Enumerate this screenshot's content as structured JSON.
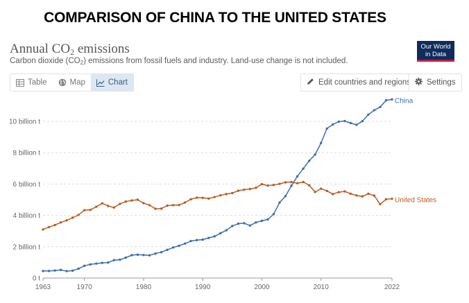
{
  "banner": "COMPARISON OF CHINA TO THE UNITED STATES",
  "header": {
    "title_main": "Annual CO",
    "title_sub": "2",
    "title_end": " emissions",
    "subtitle_a": "Carbon dioxide (CO",
    "subtitle_sub": "2",
    "subtitle_b": ") emissions from fossil fuels and industry. Land-use change is not included.",
    "logo_line1": "Our World",
    "logo_line2": "in Data",
    "logo_color": "#0f2c5c",
    "logo_accent": "#c41e3a"
  },
  "tabs": [
    {
      "label": "Table",
      "icon": "table-icon",
      "active": false
    },
    {
      "label": "Map",
      "icon": "globe-icon",
      "active": false
    },
    {
      "label": "Chart",
      "icon": "line-chart-icon",
      "active": true
    }
  ],
  "controls": {
    "edit_label": "Edit countries and regions",
    "settings_label": "Settings"
  },
  "chart_data": {
    "type": "line",
    "title": "",
    "xlabel": "",
    "ylabel": "",
    "xlim": [
      1963,
      2022
    ],
    "ylim": [
      0,
      11.5
    ],
    "x_ticks": [
      {
        "value": 1963,
        "label": "1963"
      },
      {
        "value": 1970,
        "label": "1970"
      },
      {
        "value": 1980,
        "label": "1980"
      },
      {
        "value": 1990,
        "label": "1990"
      },
      {
        "value": 2000,
        "label": "2000"
      },
      {
        "value": 2010,
        "label": "2010"
      },
      {
        "value": 2022,
        "label": "2022"
      }
    ],
    "y_ticks": [
      {
        "value": 0,
        "label": "0 t"
      },
      {
        "value": 2,
        "label": "2 billion t"
      },
      {
        "value": 4,
        "label": "4 billion t"
      },
      {
        "value": 6,
        "label": "6 billion t"
      },
      {
        "value": 8,
        "label": "8 billion t"
      },
      {
        "value": 10,
        "label": "10 billion t"
      }
    ],
    "grid": "horizontal dashed",
    "legend": "inline labels at line ends",
    "x": [
      1963,
      1964,
      1965,
      1966,
      1967,
      1968,
      1969,
      1970,
      1971,
      1972,
      1973,
      1974,
      1975,
      1976,
      1977,
      1978,
      1979,
      1980,
      1981,
      1982,
      1983,
      1984,
      1985,
      1986,
      1987,
      1988,
      1989,
      1990,
      1991,
      1992,
      1993,
      1994,
      1995,
      1996,
      1997,
      1998,
      1999,
      2000,
      2001,
      2002,
      2003,
      2004,
      2005,
      2006,
      2007,
      2008,
      2009,
      2010,
      2011,
      2012,
      2013,
      2014,
      2015,
      2016,
      2017,
      2018,
      2019,
      2020,
      2021,
      2022
    ],
    "series": [
      {
        "name": "China",
        "color": "#3a6fb0",
        "values": [
          0.45,
          0.45,
          0.48,
          0.52,
          0.44,
          0.47,
          0.6,
          0.78,
          0.87,
          0.92,
          0.97,
          0.99,
          1.14,
          1.17,
          1.3,
          1.46,
          1.49,
          1.47,
          1.45,
          1.56,
          1.65,
          1.8,
          1.95,
          2.06,
          2.2,
          2.36,
          2.42,
          2.45,
          2.56,
          2.66,
          2.86,
          3.05,
          3.32,
          3.47,
          3.5,
          3.35,
          3.55,
          3.65,
          3.74,
          4.08,
          4.82,
          5.23,
          5.89,
          6.49,
          6.98,
          7.48,
          7.88,
          8.62,
          9.54,
          9.8,
          9.98,
          10.02,
          9.89,
          9.78,
          10.01,
          10.43,
          10.71,
          10.91,
          11.34,
          11.4
        ]
      },
      {
        "name": "United States",
        "color": "#b85d22",
        "values": [
          3.1,
          3.25,
          3.38,
          3.55,
          3.68,
          3.85,
          4.03,
          4.33,
          4.35,
          4.55,
          4.77,
          4.6,
          4.5,
          4.73,
          4.88,
          4.95,
          5.0,
          4.78,
          4.65,
          4.42,
          4.43,
          4.62,
          4.65,
          4.66,
          4.82,
          5.03,
          5.13,
          5.12,
          5.07,
          5.17,
          5.28,
          5.36,
          5.42,
          5.57,
          5.64,
          5.68,
          5.76,
          5.99,
          5.9,
          5.94,
          6.01,
          6.11,
          6.13,
          6.05,
          6.13,
          5.92,
          5.49,
          5.7,
          5.56,
          5.36,
          5.48,
          5.53,
          5.38,
          5.27,
          5.21,
          5.38,
          5.26,
          4.71,
          5.03,
          5.06
        ]
      }
    ]
  }
}
